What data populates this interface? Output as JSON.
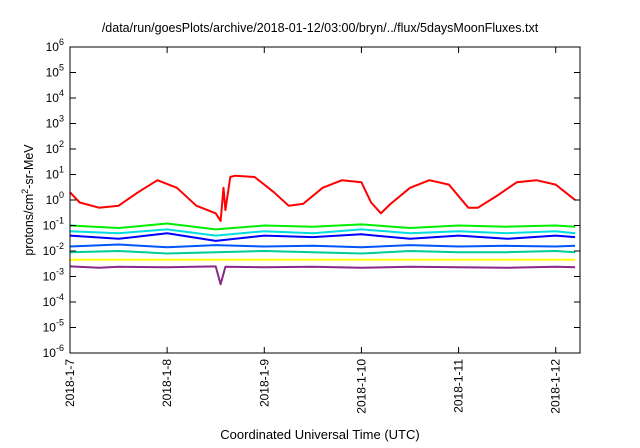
{
  "chart_data": {
    "type": "line",
    "title": "/data/run/goesPlots/archive/2018-01-12/03:00/bryn/../flux/5daysMoonFluxes.txt",
    "xlabel": "Coordinated Universal Time (UTC)",
    "ylabel_main": "protons/cm",
    "ylabel_sup": "2",
    "ylabel_rest": "-sr-MeV",
    "yscale": "log",
    "ylim": [
      1e-06,
      1000000.0
    ],
    "xlim": [
      "2018-01-07",
      "2018-01-12 06:00"
    ],
    "x_ticks": [
      "2018-1-7",
      "2018-1-8",
      "2018-1-9",
      "2018-1-10",
      "2018-1-11",
      "2018-1-12"
    ],
    "y_ticks": [
      {
        "base": "10",
        "exp": "-6",
        "v": -6
      },
      {
        "base": "10",
        "exp": "-5",
        "v": -5
      },
      {
        "base": "10",
        "exp": "-4",
        "v": -4
      },
      {
        "base": "10",
        "exp": "-3",
        "v": -3
      },
      {
        "base": "10",
        "exp": "-2",
        "v": -2
      },
      {
        "base": "10",
        "exp": "-1",
        "v": -1
      },
      {
        "base": "10",
        "exp": "0",
        "v": 0
      },
      {
        "base": "10",
        "exp": "1",
        "v": 1
      },
      {
        "base": "10",
        "exp": "2",
        "v": 2
      },
      {
        "base": "10",
        "exp": "3",
        "v": 3
      },
      {
        "base": "10",
        "exp": "4",
        "v": 4
      },
      {
        "base": "10",
        "exp": "5",
        "v": 5
      },
      {
        "base": "10",
        "exp": "6",
        "v": 6
      }
    ],
    "grid": false,
    "series": [
      {
        "color": "#ff0000",
        "x_days": [
          0,
          0.1,
          0.3,
          0.5,
          0.7,
          0.9,
          1.1,
          1.3,
          1.5,
          1.55,
          1.58,
          1.6,
          1.65,
          1.7,
          1.9,
          2.1,
          2.25,
          2.4,
          2.6,
          2.8,
          3.0,
          3.1,
          3.2,
          3.3,
          3.5,
          3.7,
          3.9,
          4.1,
          4.2,
          4.4,
          4.6,
          4.8,
          5.0,
          5.1,
          5.2
        ],
        "y": [
          2.0,
          0.8,
          0.5,
          0.6,
          2.0,
          6.0,
          3.0,
          0.6,
          0.3,
          0.15,
          3.0,
          0.4,
          8.0,
          9.0,
          8.0,
          2.0,
          0.6,
          0.7,
          3.0,
          6.0,
          5.0,
          0.8,
          0.3,
          0.7,
          3.0,
          6.0,
          4.0,
          0.5,
          0.5,
          1.5,
          5.0,
          6.0,
          4.0,
          2.0,
          1.0
        ]
      },
      {
        "color": "#00ee00",
        "x_days": [
          0,
          0.5,
          1.0,
          1.5,
          2.0,
          2.5,
          3.0,
          3.5,
          4.0,
          4.5,
          5.0,
          5.2
        ],
        "y": [
          0.1,
          0.08,
          0.12,
          0.07,
          0.1,
          0.09,
          0.11,
          0.08,
          0.1,
          0.09,
          0.1,
          0.09
        ]
      },
      {
        "color": "#00dddd",
        "x_days": [
          0,
          0.5,
          1.0,
          1.5,
          2.0,
          2.5,
          3.0,
          3.5,
          4.0,
          4.5,
          5.0,
          5.2
        ],
        "y": [
          0.06,
          0.05,
          0.07,
          0.04,
          0.06,
          0.05,
          0.07,
          0.05,
          0.06,
          0.05,
          0.06,
          0.05
        ]
      },
      {
        "color": "#0000ff",
        "x_days": [
          0,
          0.5,
          1.0,
          1.5,
          2.0,
          2.5,
          3.0,
          3.5,
          4.0,
          4.5,
          5.0,
          5.2
        ],
        "y": [
          0.04,
          0.03,
          0.05,
          0.025,
          0.04,
          0.035,
          0.045,
          0.03,
          0.04,
          0.03,
          0.04,
          0.035
        ]
      },
      {
        "color": "#0055ff",
        "x_days": [
          0,
          0.5,
          1.0,
          1.5,
          2.0,
          2.5,
          3.0,
          3.5,
          4.0,
          4.5,
          5.0,
          5.2
        ],
        "y": [
          0.015,
          0.018,
          0.014,
          0.017,
          0.015,
          0.016,
          0.014,
          0.017,
          0.015,
          0.016,
          0.015,
          0.016
        ]
      },
      {
        "color": "#00cc99",
        "x_days": [
          0,
          0.5,
          1.0,
          1.5,
          2.0,
          2.5,
          3.0,
          3.5,
          4.0,
          4.5,
          5.0,
          5.2
        ],
        "y": [
          0.009,
          0.01,
          0.008,
          0.009,
          0.01,
          0.009,
          0.008,
          0.01,
          0.009,
          0.009,
          0.01,
          0.009
        ]
      },
      {
        "color": "#ffff00",
        "x_days": [
          0,
          0.5,
          1.0,
          1.5,
          2.0,
          2.5,
          3.0,
          3.5,
          4.0,
          4.5,
          5.0,
          5.2
        ],
        "y": [
          0.0045,
          0.0045,
          0.0045,
          0.0045,
          0.0045,
          0.0045,
          0.0045,
          0.0045,
          0.0045,
          0.0045,
          0.0045,
          0.0045
        ]
      },
      {
        "color": "#8b2a8b",
        "x_days": [
          0,
          0.3,
          0.5,
          1.0,
          1.5,
          1.55,
          1.6,
          2.0,
          2.5,
          3.0,
          3.5,
          4.0,
          4.5,
          5.0,
          5.2
        ],
        "y": [
          0.0025,
          0.0022,
          0.0024,
          0.0023,
          0.0025,
          0.0005,
          0.0024,
          0.0023,
          0.0024,
          0.0022,
          0.0024,
          0.0023,
          0.0022,
          0.0024,
          0.0023
        ]
      }
    ]
  }
}
